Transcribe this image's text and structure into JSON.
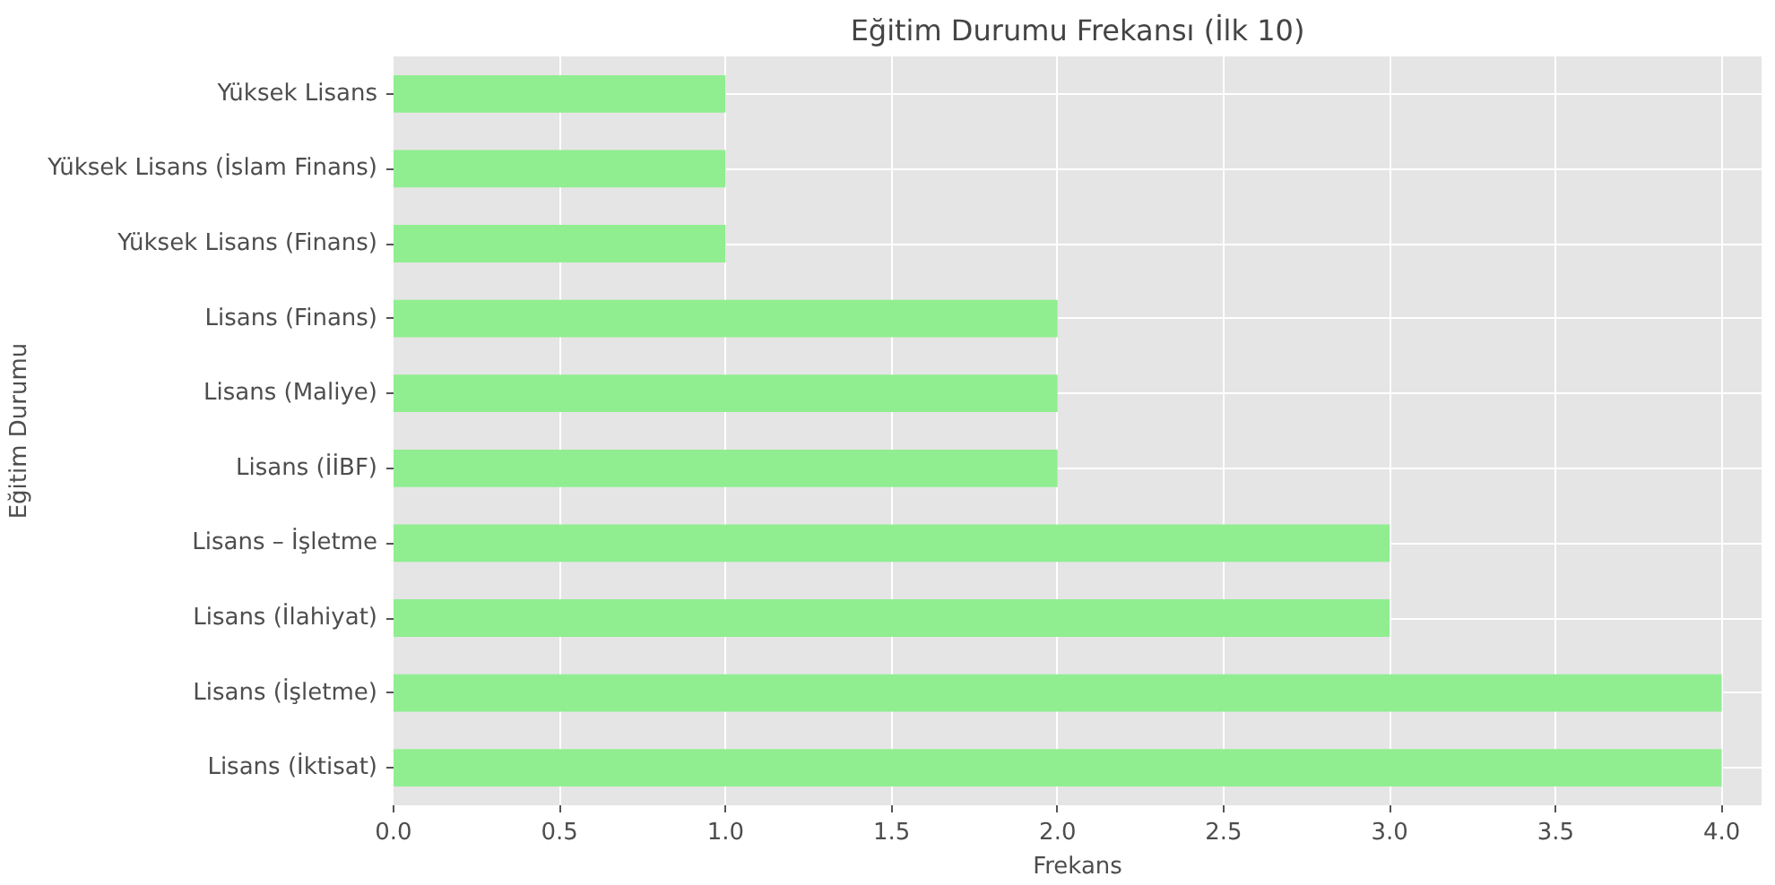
{
  "chart_data": {
    "type": "bar",
    "orientation": "horizontal",
    "title": "Eğitim Durumu Frekansı (İlk 10)",
    "xlabel": "Frekans",
    "ylabel": "Eğitim Durumu",
    "categories": [
      "Yüksek Lisans",
      "Yüksek Lisans (İslam Finans)",
      "Yüksek Lisans (Finans)",
      "Lisans (Finans)",
      "Lisans (Maliye)",
      "Lisans (İİBF)",
      "Lisans – İşletme",
      "Lisans (İlahiyat)",
      "Lisans (İşletme)",
      "Lisans (İktisat)"
    ],
    "values": [
      1,
      1,
      1,
      2,
      2,
      2,
      3,
      3,
      4,
      4
    ],
    "color": "#90ee90",
    "xlim": [
      0,
      4.12
    ],
    "xticks": [
      {
        "value": 0,
        "label": "0.0"
      },
      {
        "value": 0.5,
        "label": "0.5"
      },
      {
        "value": 1,
        "label": "1.0"
      },
      {
        "value": 1.5,
        "label": "1.5"
      },
      {
        "value": 2,
        "label": "2.0"
      },
      {
        "value": 2.5,
        "label": "2.5"
      },
      {
        "value": 3,
        "label": "3.0"
      },
      {
        "value": 3.5,
        "label": "3.5"
      },
      {
        "value": 4,
        "label": "4.0"
      }
    ],
    "grid": true
  }
}
